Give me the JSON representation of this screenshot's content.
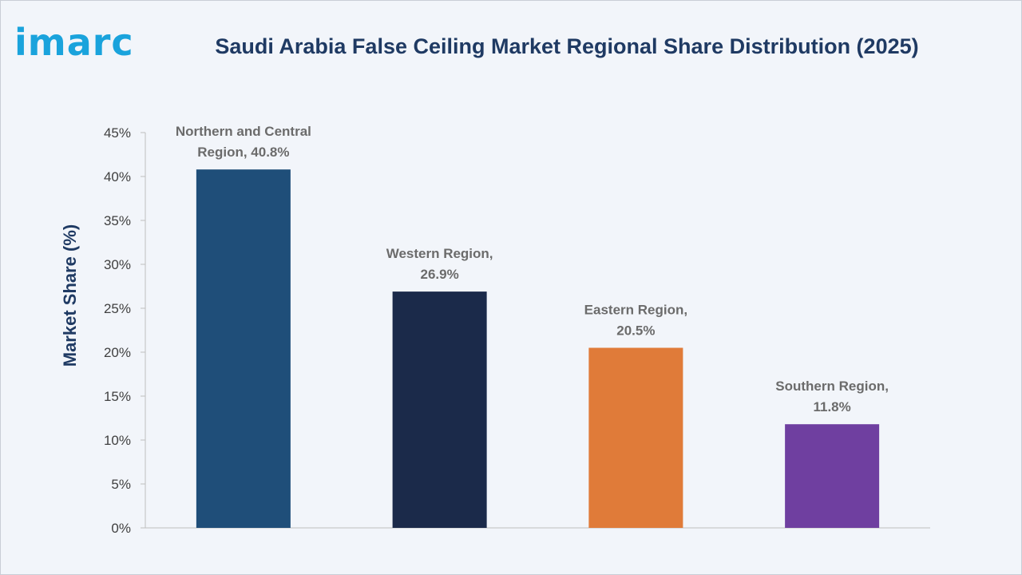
{
  "brand": {
    "logo_text": "imarc"
  },
  "chart_data": {
    "type": "bar",
    "title": "Saudi Arabia False Ceiling Market Regional Share Distribution (2025)",
    "ylabel": "Market Share (%)",
    "xlabel": "",
    "ylim": [
      0,
      45
    ],
    "yticks": [
      "0%",
      "5%",
      "10%",
      "15%",
      "20%",
      "25%",
      "30%",
      "35%",
      "40%",
      "45%"
    ],
    "categories": [
      "Northern and Central Region",
      "Western Region",
      "Eastern Region",
      "Southern Region"
    ],
    "values": [
      40.8,
      26.9,
      20.5,
      11.8
    ],
    "data_labels": [
      [
        "Northern and Central",
        "Region, 40.8%"
      ],
      [
        "Western Region,",
        "26.9%"
      ],
      [
        "Eastern Region,",
        "20.5%"
      ],
      [
        "Southern Region,",
        "11.8%"
      ]
    ],
    "colors": [
      "#1f4e79",
      "#1b2a4a",
      "#e07b39",
      "#6f3fa0"
    ],
    "grid": false,
    "legend": "none"
  }
}
